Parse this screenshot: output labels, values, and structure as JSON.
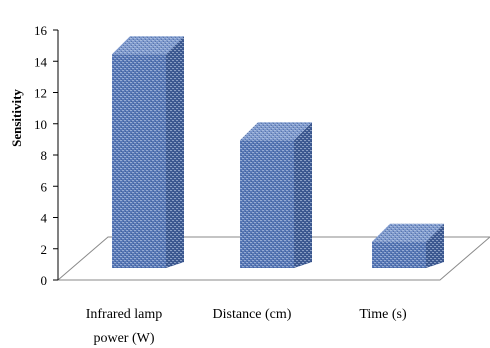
{
  "chart_data": {
    "type": "bar",
    "style": "3d-column",
    "title": "",
    "xlabel": "",
    "ylabel": "Sensitivity",
    "ylim": [
      0,
      16
    ],
    "yticks": [
      0,
      2,
      4,
      6,
      8,
      10,
      12,
      14,
      16
    ],
    "categories": [
      [
        "Infrared lamp",
        "power (W)"
      ],
      [
        "Distance (cm)"
      ],
      [
        "Time (s)"
      ]
    ],
    "values": [
      15.6,
      10.1,
      3.6
    ],
    "grid": false,
    "legend": "none",
    "colors": {
      "bar_front": "#5878b6",
      "bar_side": "#3f5b93",
      "bar_top": "#7d98cc",
      "texture": "#c7d4ea",
      "floor": "#ffffff",
      "axis": "#000000"
    }
  }
}
